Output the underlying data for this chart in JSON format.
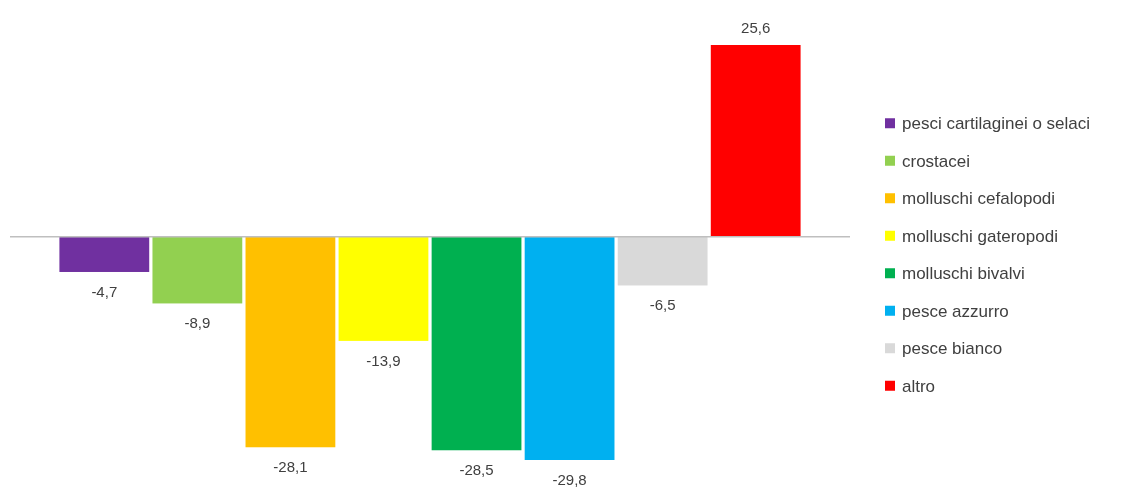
{
  "chart_data": {
    "type": "bar",
    "categories": [
      null
    ],
    "legend": "right",
    "series": [
      {
        "name": "pesci cartilaginei o selaci",
        "color": "#7030a0",
        "values": [
          -4.7
        ],
        "value_labels": [
          "-4,7"
        ]
      },
      {
        "name": "crostacei",
        "color": "#92d050",
        "values": [
          -8.9
        ],
        "value_labels": [
          "-8,9"
        ]
      },
      {
        "name": "molluschi cefalopodi",
        "color": "#ffc000",
        "values": [
          -28.1
        ],
        "value_labels": [
          "-28,1"
        ]
      },
      {
        "name": "molluschi gateropodi",
        "color": "#ffff00",
        "values": [
          -13.9
        ],
        "value_labels": [
          "-13,9"
        ]
      },
      {
        "name": "molluschi bivalvi",
        "color": "#00b050",
        "values": [
          -28.5
        ],
        "value_labels": [
          "-28,5"
        ]
      },
      {
        "name": "pesce azzurro",
        "color": "#00b0f0",
        "values": [
          -29.8
        ],
        "value_labels": [
          "-29,8"
        ]
      },
      {
        "name": "pesce bianco",
        "color": "#d9d9d9",
        "values": [
          -6.5
        ],
        "value_labels": [
          "-6,5"
        ]
      },
      {
        "name": "altro",
        "color": "#ff0000",
        "values": [
          25.6
        ],
        "value_labels": [
          "25,6"
        ]
      }
    ]
  }
}
